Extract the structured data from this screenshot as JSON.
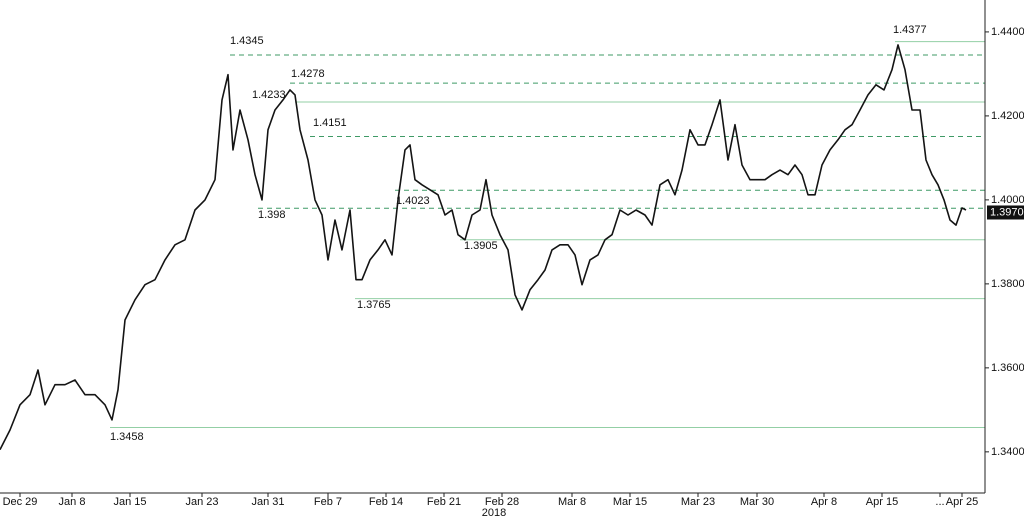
{
  "chart_data": {
    "type": "line",
    "x": [
      0,
      10,
      20,
      30,
      38,
      45,
      55,
      65,
      75,
      85,
      95,
      105,
      112,
      118,
      125,
      135,
      145,
      155,
      165,
      175,
      185,
      195,
      205,
      215,
      222,
      228,
      233,
      240,
      248,
      255,
      262,
      268,
      275,
      283,
      290,
      295,
      300,
      308,
      315,
      322,
      328,
      335,
      342,
      350,
      356,
      362,
      370,
      378,
      385,
      392,
      398,
      405,
      410,
      415,
      422,
      430,
      438,
      445,
      452,
      458,
      465,
      472,
      480,
      486,
      492,
      500,
      508,
      515,
      522,
      530,
      538,
      545,
      552,
      560,
      568,
      575,
      582,
      590,
      598,
      605,
      612,
      620,
      628,
      636,
      645,
      652,
      660,
      668,
      675,
      682,
      690,
      698,
      705,
      712,
      720,
      728,
      735,
      742,
      750,
      758,
      765,
      772,
      780,
      788,
      795,
      802,
      808,
      815,
      822,
      830,
      838,
      845,
      852,
      860,
      868,
      876,
      884,
      892,
      898,
      905,
      912,
      920,
      926,
      932,
      938,
      944,
      950,
      956,
      962,
      966
    ],
    "series": [
      {
        "color": "#141414",
        "values": [
          1.3405,
          1.3452,
          1.3512,
          1.3536,
          1.3595,
          1.3512,
          1.356,
          1.356,
          1.3571,
          1.3536,
          1.3536,
          1.3512,
          1.3476,
          1.3548,
          1.3714,
          1.3762,
          1.3798,
          1.381,
          1.3857,
          1.3893,
          1.3905,
          1.3976,
          1.4,
          1.4048,
          1.4238,
          1.4298,
          1.4119,
          1.4214,
          1.4143,
          1.406,
          1.4,
          1.4167,
          1.4214,
          1.4238,
          1.4262,
          1.425,
          1.4167,
          1.4095,
          1.4,
          1.3964,
          1.3857,
          1.3952,
          1.3881,
          1.3976,
          1.381,
          1.381,
          1.3857,
          1.3881,
          1.3905,
          1.3869,
          1.4,
          1.4119,
          1.4131,
          1.4048,
          1.4036,
          1.4024,
          1.4012,
          1.3964,
          1.3976,
          1.3917,
          1.3905,
          1.3964,
          1.3976,
          1.4048,
          1.3964,
          1.3917,
          1.3881,
          1.3774,
          1.3738,
          1.3786,
          1.381,
          1.3833,
          1.3881,
          1.3893,
          1.3893,
          1.3869,
          1.3798,
          1.3857,
          1.3869,
          1.3905,
          1.3917,
          1.3976,
          1.3964,
          1.3976,
          1.3964,
          1.394,
          1.4036,
          1.4048,
          1.4012,
          1.4071,
          1.4167,
          1.4131,
          1.4131,
          1.4179,
          1.4238,
          1.4095,
          1.4179,
          1.4083,
          1.4048,
          1.4048,
          1.4048,
          1.406,
          1.4071,
          1.406,
          1.4083,
          1.406,
          1.4012,
          1.4012,
          1.4083,
          1.4119,
          1.4143,
          1.4167,
          1.4179,
          1.4214,
          1.425,
          1.4274,
          1.4262,
          1.431,
          1.4369,
          1.431,
          1.4214,
          1.4214,
          1.4095,
          1.406,
          1.4036,
          1.4,
          1.3952,
          1.394,
          1.3981,
          1.3976
        ]
      }
    ],
    "xlim": [
      0,
      985
    ],
    "xticks": [
      {
        "value": 20,
        "label": "Dec 29"
      },
      {
        "value": 72,
        "label": "Jan 8"
      },
      {
        "value": 130,
        "label": "Jan 15"
      },
      {
        "value": 202,
        "label": "Jan 23"
      },
      {
        "value": 268,
        "label": "Jan 31"
      },
      {
        "value": 328,
        "label": "Feb 7"
      },
      {
        "value": 386,
        "label": "Feb 14"
      },
      {
        "value": 444,
        "label": "Feb 21"
      },
      {
        "value": 502,
        "label": "Feb 28"
      },
      {
        "value": 572,
        "label": "Mar 8"
      },
      {
        "value": 630,
        "label": "Mar 15"
      },
      {
        "value": 698,
        "label": "Mar 23"
      },
      {
        "value": 757,
        "label": "Mar 30"
      },
      {
        "value": 824,
        "label": "Apr 8"
      },
      {
        "value": 882,
        "label": "Apr 15"
      },
      {
        "value": 940,
        "label": "..."
      },
      {
        "value": 962,
        "label": "Apr 25"
      }
    ],
    "year_label": "2018",
    "ylim": [
      1.3302,
      1.4476
    ],
    "yticks": [
      {
        "value": 1.34,
        "label": "1.3400"
      },
      {
        "value": 1.36,
        "label": "1.3600"
      },
      {
        "value": 1.38,
        "label": "1.3800"
      },
      {
        "value": 1.4,
        "label": "1.4000"
      },
      {
        "value": 1.42,
        "label": "1.4200"
      },
      {
        "value": 1.44,
        "label": "1.4400"
      }
    ],
    "levels": [
      {
        "value": 1.4377,
        "dashed": false
      },
      {
        "value": 1.4345,
        "dashed": true
      },
      {
        "value": 1.4278,
        "dashed": true
      },
      {
        "value": 1.4233,
        "dashed": false
      },
      {
        "value": 1.4151,
        "dashed": true
      },
      {
        "value": 1.4023,
        "dashed": true
      },
      {
        "value": 1.398,
        "dashed": true
      },
      {
        "value": 1.3905,
        "dashed": false
      },
      {
        "value": 1.3765,
        "dashed": false
      },
      {
        "value": 1.3458,
        "dashed": false
      }
    ],
    "last_value": {
      "value": 1.397,
      "label": "1.3970"
    }
  }
}
